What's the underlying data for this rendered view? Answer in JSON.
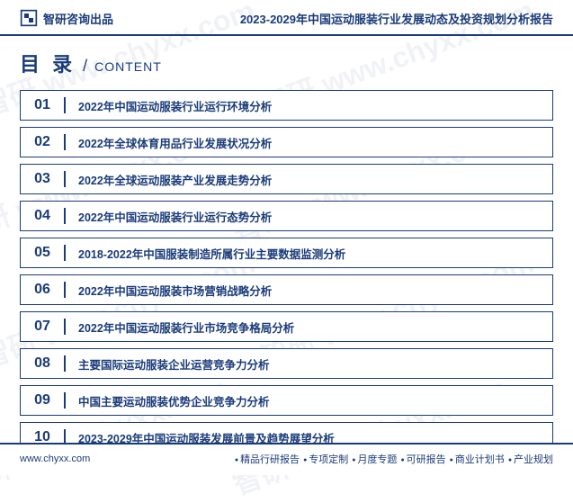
{
  "header": {
    "brand_text": "智研咨询出品",
    "title": "2023-2029年中国运动服装行业发展动态及投资规划分析报告"
  },
  "toc": {
    "heading_cn": "目 录",
    "separator": "/",
    "heading_en": "CONTENT",
    "items": [
      {
        "num": "01",
        "text": "2022年中国运动服装行业运行环境分析"
      },
      {
        "num": "02",
        "text": "2022年全球体育用品行业发展状况分析"
      },
      {
        "num": "03",
        "text": "2022年全球运动服装产业发展走势分析"
      },
      {
        "num": "04",
        "text": "2022年中国运动服装行业运行态势分析"
      },
      {
        "num": "05",
        "text": "2018-2022年中国服装制造所属行业主要数据监测分析"
      },
      {
        "num": "06",
        "text": "2022年中国运动服装市场营销战略分析"
      },
      {
        "num": "07",
        "text": "2022年中国运动服装行业市场竞争格局分析"
      },
      {
        "num": "08",
        "text": "主要国际运动服装企业运营竞争力分析"
      },
      {
        "num": "09",
        "text": "中国主要运动服装优势企业竞争力分析"
      },
      {
        "num": "10",
        "text": "2023-2029年中国运动服装发展前景及趋势展望分析"
      }
    ]
  },
  "footer": {
    "url": "www.chyxx.com",
    "tags": [
      "精品行研报告",
      "专项定制",
      "月度专题",
      "可研报告",
      "商业计划书",
      "产业规划"
    ]
  },
  "watermark": {
    "text": "智研 www.chyxx.com"
  },
  "colors": {
    "primary": "#1a3b7a",
    "background": "#ffffff"
  }
}
